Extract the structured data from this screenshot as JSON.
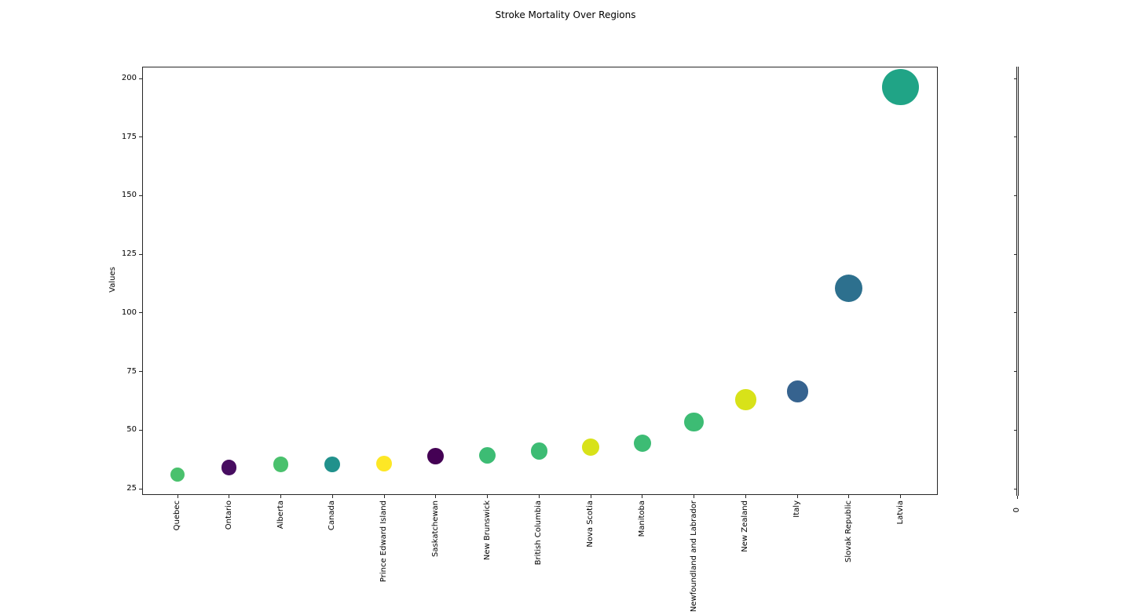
{
  "chart_data": {
    "type": "scatter",
    "title": "Stroke Mortality Over Regions",
    "xlabel": "",
    "ylabel": "Values",
    "ylim": [
      22,
      205
    ],
    "y_ticks": [
      25,
      50,
      75,
      100,
      125,
      150,
      175,
      200
    ],
    "grid": false,
    "legend": "none",
    "marker_size_rule": "bubble area proportional to value",
    "categories": [
      "Quebec",
      "Ontario",
      "Alberta",
      "Canada",
      "Prince Edward Island",
      "Saskatchewan",
      "New Brunswick",
      "British Columbia",
      "Nova Scotia",
      "Manitoba",
      "Newfoundland and Labrador",
      "New Zealand",
      "Italy",
      "Slovak Republic",
      "Latvia"
    ],
    "values": [
      31,
      34,
      35.3,
      35.5,
      35.7,
      39,
      39.3,
      41,
      42.7,
      44.5,
      53.5,
      63,
      66.5,
      110.5,
      196.3
    ],
    "colors": [
      "#4ac16d",
      "#470d60",
      "#4ac16d",
      "#21918c",
      "#fde725",
      "#440154",
      "#3dbc74",
      "#3dbc74",
      "#d8e219",
      "#3dbc74",
      "#3dbc74",
      "#d8e219",
      "#36638f",
      "#2d708e",
      "#20a486"
    ],
    "axis_color": "#262626",
    "secondary_axis": {
      "x_tick_label": "0",
      "y_tick_count": 8
    }
  }
}
